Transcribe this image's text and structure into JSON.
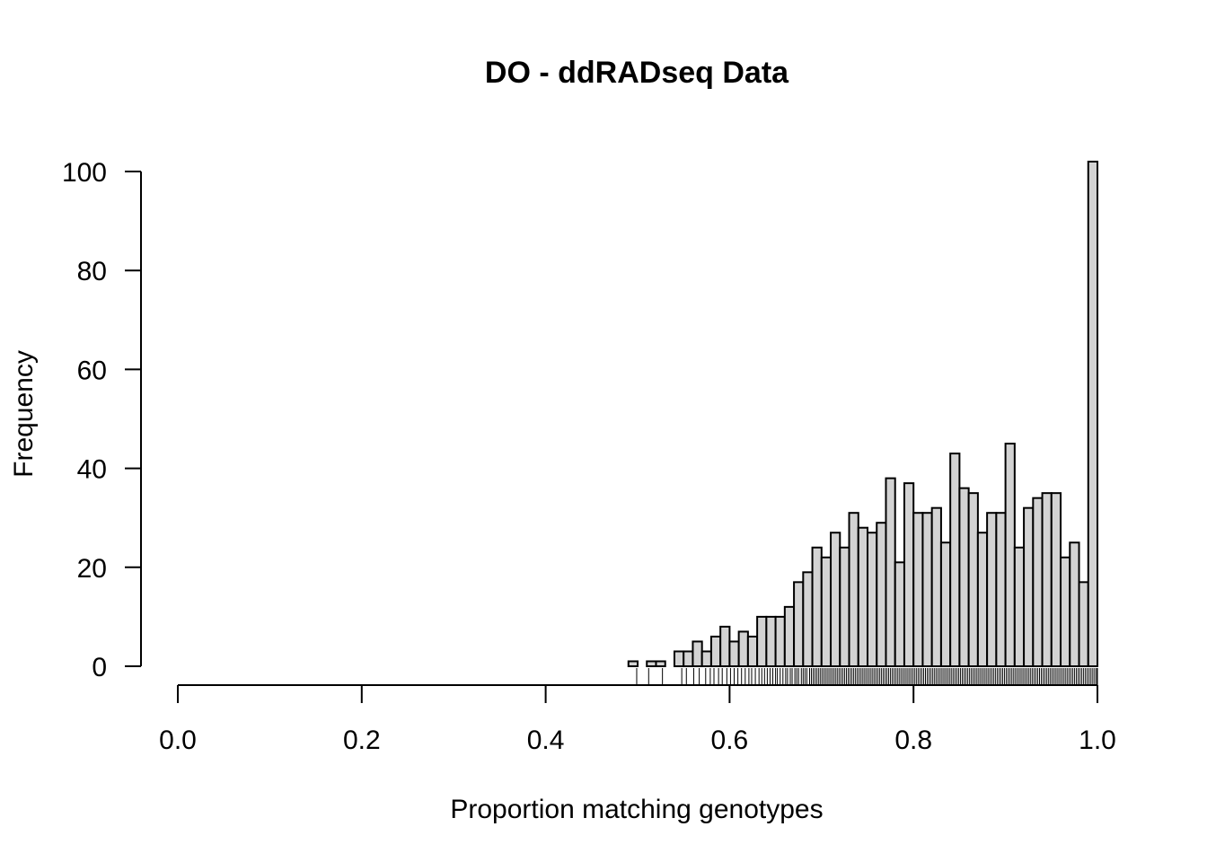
{
  "chart_data": {
    "type": "bar",
    "title": "DO - ddRADseq Data",
    "xlabel": "Proportion matching genotypes",
    "ylabel": "Frequency",
    "xlim": [
      0,
      1
    ],
    "ylim": [
      0,
      100
    ],
    "x_ticks": [
      "0.0",
      "0.2",
      "0.4",
      "0.6",
      "0.8",
      "1.0"
    ],
    "y_ticks": [
      "0",
      "20",
      "40",
      "60",
      "80",
      "100"
    ],
    "bin_width": 0.01,
    "bin_start": 0.0,
    "bar_fill": "#d3d3d3",
    "bar_stroke": "#000000",
    "values": [
      0,
      0,
      0,
      0,
      0,
      0,
      0,
      0,
      0,
      0,
      0,
      0,
      0,
      0,
      0,
      0,
      0,
      0,
      0,
      0,
      0,
      0,
      0,
      0,
      0,
      0,
      0,
      0,
      0,
      0,
      0,
      0,
      0,
      0,
      0,
      0,
      0,
      0,
      0,
      0,
      0,
      0,
      0,
      0,
      0,
      0,
      0,
      0,
      0,
      1,
      0,
      1,
      1,
      0,
      3,
      3,
      5,
      3,
      6,
      8,
      5,
      7,
      6,
      10,
      10,
      10,
      12,
      17,
      19,
      24,
      22,
      27,
      24,
      31,
      28,
      27,
      29,
      38,
      21,
      37,
      31,
      31,
      32,
      25,
      43,
      36,
      35,
      27,
      31,
      31,
      45,
      24,
      32,
      34,
      35,
      35,
      22,
      25,
      17,
      102
    ],
    "rug": [
      0.499,
      0.512,
      0.527,
      0.548,
      0.553,
      0.561,
      0.567,
      0.574,
      0.579,
      0.583,
      0.588,
      0.592,
      0.597,
      0.601,
      0.605,
      0.609,
      0.613,
      0.617,
      0.621,
      0.624,
      0.628,
      0.632,
      0.635,
      0.638,
      0.641,
      0.644,
      0.647,
      0.65,
      0.652,
      0.655,
      0.658,
      0.661,
      0.663,
      0.666,
      0.668,
      0.671,
      0.673,
      0.675,
      0.678,
      0.68,
      0.682,
      0.684,
      0.687,
      0.689,
      0.691,
      0.693,
      0.695,
      0.697,
      0.699,
      0.701,
      0.703,
      0.705,
      0.707,
      0.709,
      0.711,
      0.713,
      0.715,
      0.717,
      0.719,
      0.721,
      0.723,
      0.725,
      0.727,
      0.729,
      0.731,
      0.733,
      0.735,
      0.737,
      0.739,
      0.741,
      0.743,
      0.745,
      0.747,
      0.749,
      0.751,
      0.753,
      0.755,
      0.757,
      0.759,
      0.761,
      0.763,
      0.765,
      0.767,
      0.769,
      0.771,
      0.773,
      0.775,
      0.777,
      0.779,
      0.781,
      0.783,
      0.785,
      0.787,
      0.789,
      0.791,
      0.793,
      0.795,
      0.797,
      0.799,
      0.801,
      0.803,
      0.805,
      0.807,
      0.809,
      0.811,
      0.813,
      0.815,
      0.817,
      0.819,
      0.821,
      0.823,
      0.825,
      0.827,
      0.829,
      0.831,
      0.833,
      0.835,
      0.837,
      0.839,
      0.841,
      0.843,
      0.845,
      0.847,
      0.849,
      0.851,
      0.853,
      0.855,
      0.857,
      0.859,
      0.861,
      0.863,
      0.865,
      0.867,
      0.869,
      0.871,
      0.873,
      0.875,
      0.877,
      0.879,
      0.881,
      0.883,
      0.885,
      0.887,
      0.889,
      0.891,
      0.893,
      0.895,
      0.897,
      0.899,
      0.901,
      0.903,
      0.905,
      0.907,
      0.909,
      0.911,
      0.913,
      0.915,
      0.917,
      0.919,
      0.921,
      0.923,
      0.925,
      0.927,
      0.929,
      0.931,
      0.933,
      0.935,
      0.937,
      0.939,
      0.941,
      0.943,
      0.945,
      0.947,
      0.949,
      0.951,
      0.953,
      0.955,
      0.957,
      0.959,
      0.961,
      0.963,
      0.965,
      0.967,
      0.969,
      0.971,
      0.973,
      0.975,
      0.977,
      0.979,
      0.981,
      0.983,
      0.985,
      0.987,
      0.989,
      0.991,
      0.993,
      0.995,
      0.997,
      0.999,
      1.0
    ],
    "grid": false,
    "legend": "none"
  }
}
